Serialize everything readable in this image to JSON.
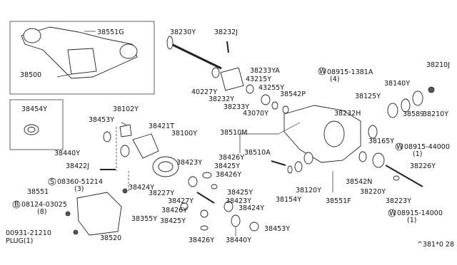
{
  "labels": [
    "38551G",
    "38500",
    "38454Y",
    "38230Y",
    "38232J",
    "38233YA",
    "43215Y",
    "43255Y",
    "38542P",
    "40227Y",
    "38232Y",
    "38233Y",
    "43070Y",
    "W",
    "08915-1381A",
    "(4)",
    "38232H",
    "38140Y",
    "38210J",
    "38125Y",
    "38589",
    "38210Y",
    "38102Y",
    "38453Y",
    "38421T",
    "38100Y",
    "38510M",
    "38440Y",
    "38422J",
    "38510A",
    "38165Y",
    "W",
    "08915-44000",
    "(1)",
    "38426Y",
    "38423Y",
    "38425Y",
    "38426Y",
    "S",
    "08360-51214",
    "(3)",
    "38551",
    "38424Y",
    "38227Y",
    "38427Y",
    "38425Y",
    "38423Y",
    "B",
    "08124-03025",
    "(8)",
    "38424Y",
    "38426Y",
    "38355Y",
    "38425Y",
    "00931-21210",
    "PLUG(1)",
    "38520",
    "38426Y",
    "38440Y",
    "38453Y",
    "38154Y",
    "38120Y",
    "38551F",
    "38542N",
    "38220Y",
    "38223Y",
    "38226Y",
    "W",
    "08915-14000",
    "(1)",
    "^381*0 28"
  ]
}
